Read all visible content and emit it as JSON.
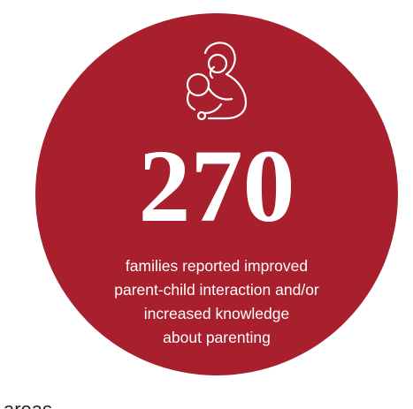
{
  "stat": {
    "number": 270,
    "lines": [
      "families reported improved",
      "parent-child interaction and/or",
      "increased knowledge",
      "about parenting"
    ]
  },
  "footer": "areas"
}
